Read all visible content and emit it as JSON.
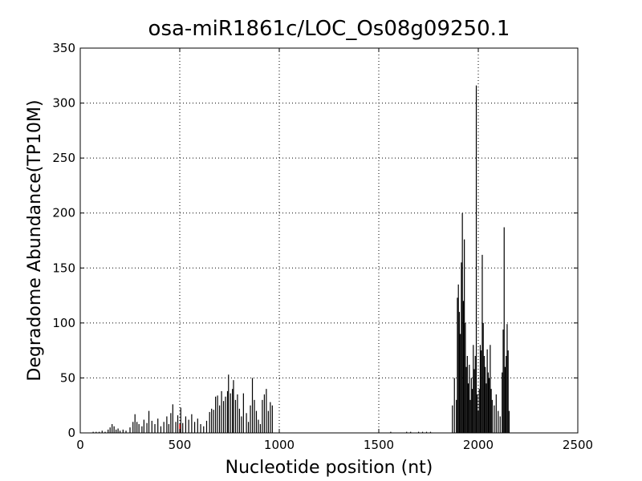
{
  "chart_data": {
    "type": "spike",
    "title": "osa-miR1861c/LOC_Os08g09250.1",
    "x_label": "Nucleotide position (nt)",
    "y_label": "Degradome Abundance(TP10M)",
    "xlim": [
      0,
      2500
    ],
    "xticks": [
      0,
      500,
      1000,
      1500,
      2000,
      2500
    ],
    "ylim": [
      0,
      350
    ],
    "yticks": [
      0,
      50,
      100,
      150,
      200,
      250,
      300,
      350
    ],
    "grid": true,
    "series": [
      {
        "color": "#000000",
        "x": [
          65,
          80,
          95,
          110,
          125,
          140,
          150,
          160,
          170,
          180,
          190,
          200,
          215,
          230,
          250,
          265,
          275,
          285,
          295,
          310,
          320,
          335,
          345,
          360,
          375,
          390,
          405,
          420,
          435,
          445,
          455,
          465,
          480,
          490,
          505,
          515,
          530,
          545,
          560,
          575,
          590,
          605,
          620,
          635,
          650,
          660,
          670,
          680,
          690,
          700,
          710,
          720,
          730,
          740,
          745,
          755,
          765,
          770,
          780,
          790,
          800,
          810,
          820,
          835,
          845,
          855,
          865,
          875,
          885,
          895,
          905,
          915,
          925,
          935,
          945,
          955,
          965,
          1560,
          1640,
          1660,
          1700,
          1720,
          1740,
          1760,
          1870,
          1880,
          1890,
          1895,
          1900,
          1905,
          1910,
          1915,
          1920,
          1925,
          1930,
          1935,
          1940,
          1945,
          1950,
          1955,
          1960,
          1965,
          1970,
          1975,
          1980,
          1985,
          1990,
          1995,
          2000,
          2005,
          2010,
          2015,
          2020,
          2025,
          2030,
          2035,
          2040,
          2045,
          2050,
          2055,
          2060,
          2065,
          2070,
          2080,
          2090,
          2100,
          2110,
          2120,
          2125,
          2130,
          2135,
          2140,
          2145,
          2150,
          2155
        ],
        "values": [
          1,
          1,
          1,
          2,
          1,
          3,
          5,
          8,
          6,
          3,
          4,
          2,
          3,
          2,
          5,
          10,
          17,
          10,
          8,
          6,
          12,
          9,
          20,
          11,
          8,
          13,
          6,
          10,
          15,
          8,
          18,
          26,
          10,
          16,
          23,
          9,
          15,
          12,
          17,
          10,
          13,
          8,
          6,
          11,
          19,
          22,
          21,
          33,
          34,
          25,
          38,
          29,
          33,
          38,
          53,
          36,
          40,
          48,
          30,
          35,
          22,
          15,
          36,
          18,
          10,
          25,
          50,
          30,
          20,
          12,
          8,
          30,
          35,
          40,
          20,
          28,
          25,
          1,
          1,
          1,
          1,
          1,
          1,
          1,
          25,
          50,
          30,
          123,
          135,
          110,
          90,
          155,
          200,
          120,
          176,
          100,
          60,
          70,
          45,
          62,
          30,
          50,
          40,
          80,
          58,
          70,
          316,
          35,
          20,
          40,
          80,
          75,
          162,
          100,
          70,
          60,
          45,
          76,
          55,
          50,
          80,
          40,
          30,
          25,
          35,
          20,
          15,
          55,
          94,
          187,
          60,
          70,
          99,
          75,
          20
        ]
      },
      {
        "color": "#ff0000",
        "x": [
          500
        ],
        "values": [
          8
        ]
      }
    ]
  }
}
